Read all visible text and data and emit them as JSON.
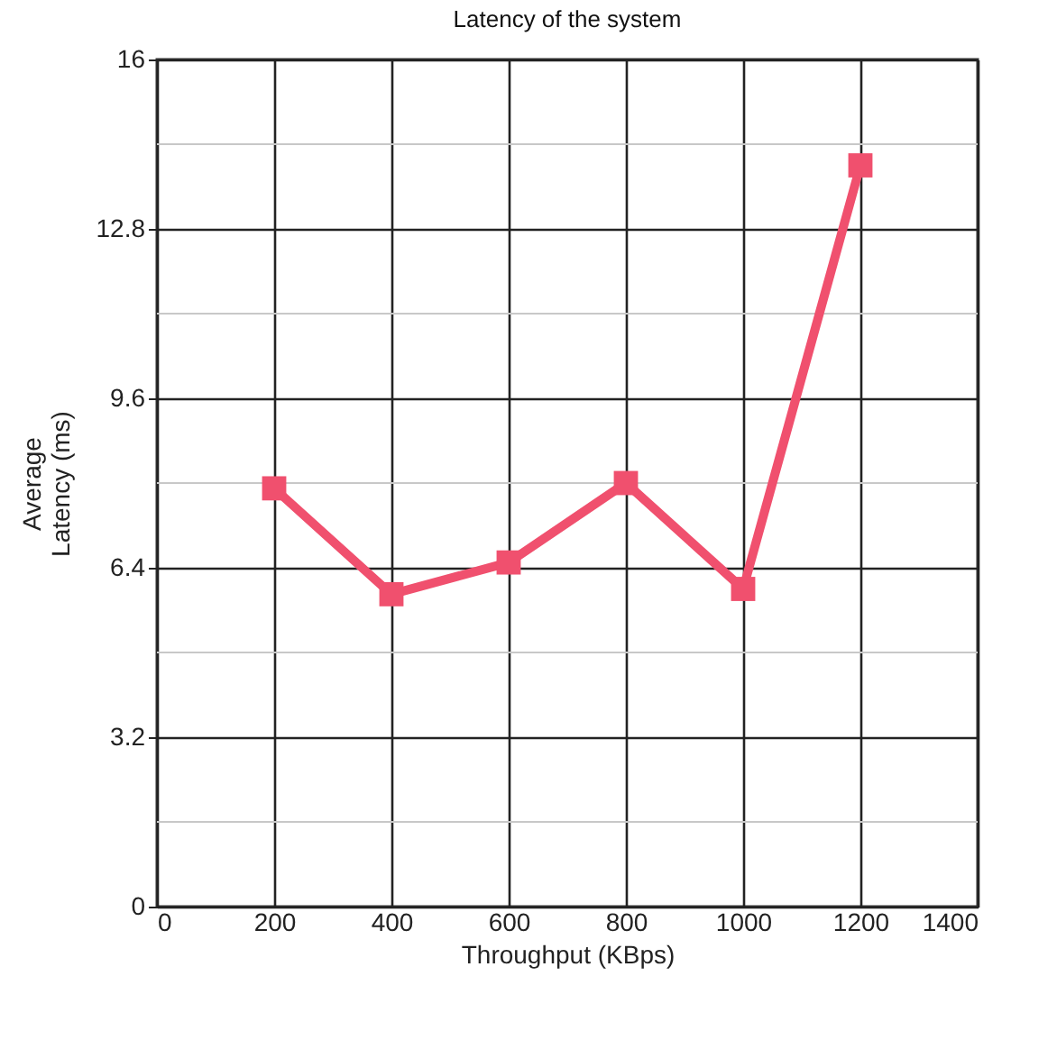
{
  "chart_data": {
    "type": "line",
    "title": "Latency of the system",
    "xlabel": "Throughput (KBps)",
    "ylabel": "Average Latency (ms)",
    "x": [
      200,
      400,
      600,
      800,
      1000,
      1200
    ],
    "series": [
      {
        "color": "#f0506e",
        "values": [
          7.9,
          5.9,
          6.5,
          8.0,
          6.0,
          14.0
        ]
      }
    ],
    "xlim": [
      0,
      1400
    ],
    "xticks": [
      0,
      200,
      400,
      600,
      800,
      1000,
      1200,
      1400
    ],
    "ylim": [
      0,
      16
    ],
    "yticks": [
      0,
      {
        "value": 1.6,
        "label": null
      },
      3.2,
      {
        "value": 4.8,
        "label": null
      },
      6.4,
      {
        "value": 8,
        "label": null
      },
      9.6,
      {
        "value": 11.2,
        "label": null
      },
      12.8,
      {
        "value": 14.4,
        "label": null
      },
      16
    ],
    "grid": true,
    "marker": "square",
    "line_style": "solid"
  }
}
